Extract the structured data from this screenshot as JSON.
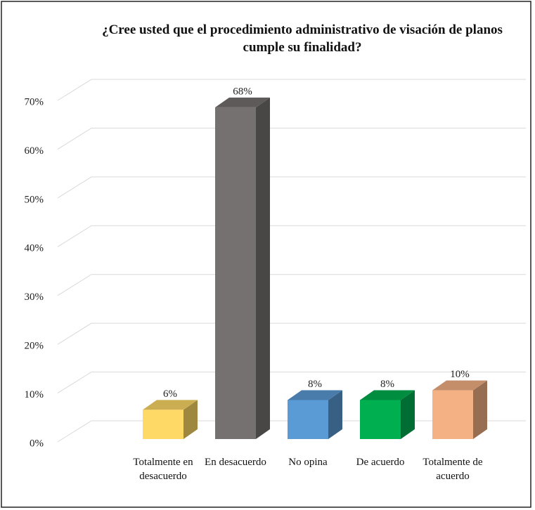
{
  "chart_data": {
    "type": "bar3d",
    "title": "¿Cree usted que el procedimiento administrativo de visación de planos cumple su finalidad?",
    "categories": [
      "Totalmente en desacuerdo",
      "En desacuerdo",
      "No opina",
      "De acuerdo",
      "Totalmente de acuerdo"
    ],
    "values": [
      6,
      68,
      8,
      8,
      10
    ],
    "value_labels": [
      "6%",
      "68%",
      "8%",
      "8%",
      "10%"
    ],
    "colors": [
      "#ffd966",
      "#767171",
      "#5b9bd5",
      "#00b050",
      "#f4b183"
    ],
    "ylim": [
      0,
      70
    ],
    "yticks": [
      {
        "value": 0,
        "label": "0%"
      },
      {
        "value": 10,
        "label": "10%"
      },
      {
        "value": 20,
        "label": "20%"
      },
      {
        "value": 30,
        "label": "30%"
      },
      {
        "value": 40,
        "label": "40%"
      },
      {
        "value": 50,
        "label": "50%"
      },
      {
        "value": 60,
        "label": "60%"
      },
      {
        "value": 70,
        "label": "70%"
      }
    ],
    "grid": true
  }
}
